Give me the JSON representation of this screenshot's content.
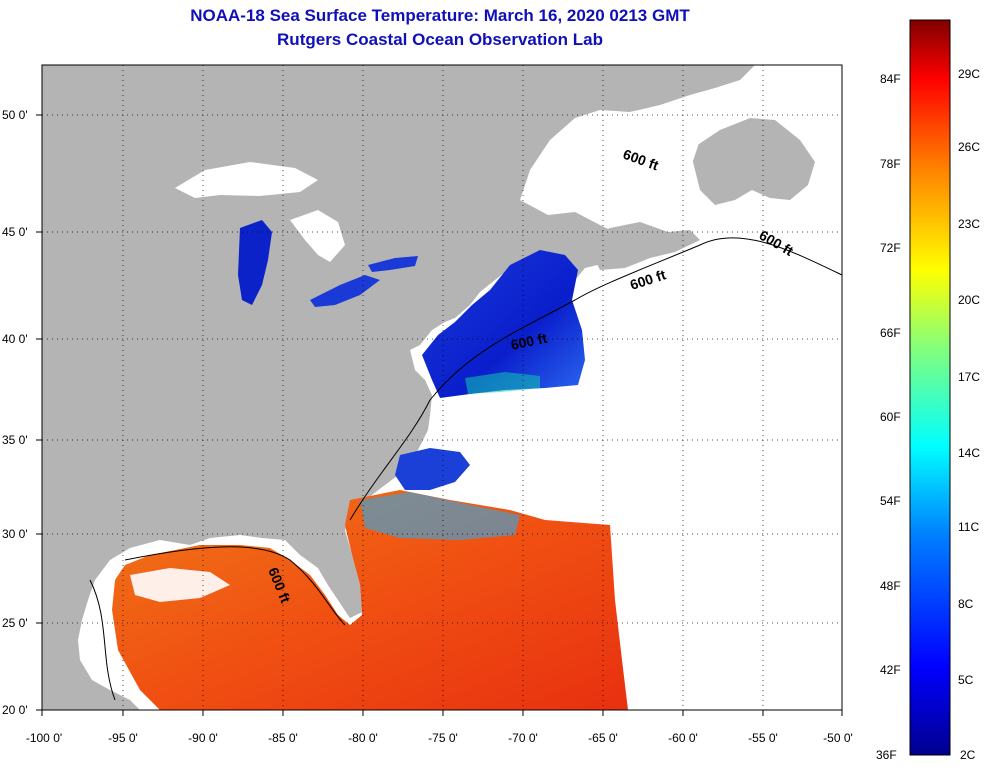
{
  "title": "NOAA-18 Sea Surface Temperature:  March 16, 2020 0213 GMT",
  "subtitle": "Rutgers Coastal Ocean Observation Lab",
  "lat_ticks": [
    "50 0'",
    "45 0'",
    "40 0'",
    "35 0'",
    "30 0'",
    "25 0'",
    "20 0'"
  ],
  "lon_ticks": [
    "-100 0'",
    "-95 0'",
    "-90 0'",
    "-85 0'",
    "-80 0'",
    "-75 0'",
    "-70 0'",
    "-65 0'",
    "-60 0'",
    "-55 0'",
    "-50 0'"
  ],
  "depth_label": "600 ft",
  "colorbar": {
    "fahrenheit": [
      "84F",
      "78F",
      "72F",
      "66F",
      "60F",
      "54F",
      "48F",
      "42F",
      "36F"
    ],
    "celsius": [
      "29C",
      "26C",
      "23C",
      "20C",
      "17C",
      "14C",
      "11C",
      "8C",
      "5C",
      "2C"
    ]
  },
  "colors": {
    "title": "#1010b8",
    "land": "#b4b4b4",
    "no_data": "#ffffff",
    "cold": "#0a1ecc",
    "warm": "#f04010"
  }
}
